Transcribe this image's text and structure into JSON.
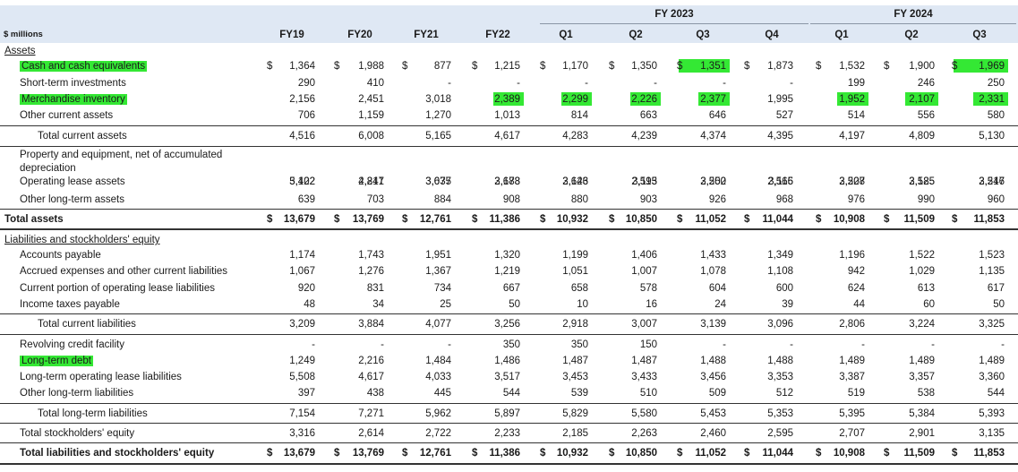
{
  "header": {
    "units": "$ millions",
    "groups": [
      "FY 2023",
      "FY 2024"
    ],
    "columns": [
      "FY19",
      "FY20",
      "FY21",
      "FY22",
      "Q1",
      "Q2",
      "Q3",
      "Q4",
      "Q1",
      "Q2",
      "Q3"
    ]
  },
  "sections": {
    "assets": "Assets",
    "liabilities": "Liabilities and stockholders' equity"
  },
  "highlight_color": "#34e834",
  "rows": [
    {
      "label": "Cash and cash equivalents",
      "indent": 1,
      "dollar": true,
      "label_hl": true,
      "values": [
        "1,364",
        "1,988",
        "877",
        "1,215",
        "1,170",
        "1,350",
        "1,351",
        "1,873",
        "1,532",
        "1,900",
        "1,969"
      ],
      "hl": [
        6,
        10
      ]
    },
    {
      "label": "Short-term investments",
      "indent": 1,
      "values": [
        "290",
        "410",
        "-",
        "-",
        "-",
        "-",
        "-",
        "-",
        "199",
        "246",
        "250"
      ]
    },
    {
      "label": "Merchandise inventory",
      "indent": 1,
      "label_hl": true,
      "values": [
        "2,156",
        "2,451",
        "3,018",
        "2,389",
        "2,299",
        "2,226",
        "2,377",
        "1,995",
        "1,952",
        "2,107",
        "2,331"
      ],
      "hl": [
        3,
        4,
        5,
        6,
        8,
        9,
        10
      ]
    },
    {
      "label": "Other current assets",
      "indent": 1,
      "values": [
        "706",
        "1,159",
        "1,270",
        "1,013",
        "814",
        "663",
        "646",
        "527",
        "514",
        "556",
        "580"
      ]
    },
    {
      "label": "Total current assets",
      "indent": 2,
      "values": [
        "4,516",
        "6,008",
        "5,165",
        "4,617",
        "4,283",
        "4,239",
        "4,374",
        "4,395",
        "4,197",
        "4,809",
        "5,130"
      ]
    },
    {
      "label": "Property and equipment, net of accumulated",
      "label2": "depreciation",
      "indent": 1,
      "values": [
        "3,122",
        "2,841",
        "3,037",
        "2,688",
        "2,646",
        "2,595",
        "2,552",
        "2,566",
        "2,528",
        "2,525",
        "2,546"
      ]
    },
    {
      "label": "Operating lease assets",
      "indent": 1,
      "values": [
        "5,402",
        "4,217",
        "3,675",
        "3,173",
        "3,123",
        "3,113",
        "3,200",
        "3,115",
        "3,207",
        "3,185",
        "3,217"
      ]
    },
    {
      "label": "Other long-term assets",
      "indent": 1,
      "values": [
        "639",
        "703",
        "884",
        "908",
        "880",
        "903",
        "926",
        "968",
        "976",
        "990",
        "960"
      ]
    },
    {
      "label": "Total assets",
      "indent": 0,
      "bold": true,
      "dollar": true,
      "values": [
        "13,679",
        "13,769",
        "12,761",
        "11,386",
        "10,932",
        "10,850",
        "11,052",
        "11,044",
        "10,908",
        "11,509",
        "11,853"
      ]
    },
    {
      "label": "Accounts payable",
      "indent": 1,
      "values": [
        "1,174",
        "1,743",
        "1,951",
        "1,320",
        "1,199",
        "1,406",
        "1,433",
        "1,349",
        "1,196",
        "1,522",
        "1,523"
      ]
    },
    {
      "label": "Accrued expenses and other current liabilities",
      "indent": 1,
      "values": [
        "1,067",
        "1,276",
        "1,367",
        "1,219",
        "1,051",
        "1,007",
        "1,078",
        "1,108",
        "942",
        "1,029",
        "1,135"
      ]
    },
    {
      "label": "Current portion of operating lease liabilities",
      "indent": 1,
      "values": [
        "920",
        "831",
        "734",
        "667",
        "658",
        "578",
        "604",
        "600",
        "624",
        "613",
        "617"
      ]
    },
    {
      "label": "Income taxes payable",
      "indent": 1,
      "values": [
        "48",
        "34",
        "25",
        "50",
        "10",
        "16",
        "24",
        "39",
        "44",
        "60",
        "50"
      ]
    },
    {
      "label": "Total current liabilities",
      "indent": 2,
      "values": [
        "3,209",
        "3,884",
        "4,077",
        "3,256",
        "2,918",
        "3,007",
        "3,139",
        "3,096",
        "2,806",
        "3,224",
        "3,325"
      ]
    },
    {
      "label": "Revolving credit facility",
      "indent": 1,
      "values": [
        "-",
        "-",
        "-",
        "350",
        "350",
        "150",
        "-",
        "-",
        "-",
        "-",
        "-"
      ]
    },
    {
      "label": "Long-term debt",
      "indent": 1,
      "label_hl": true,
      "values": [
        "1,249",
        "2,216",
        "1,484",
        "1,486",
        "1,487",
        "1,487",
        "1,488",
        "1,488",
        "1,489",
        "1,489",
        "1,489"
      ]
    },
    {
      "label": "Long-term operating lease liabilities",
      "indent": 1,
      "values": [
        "5,508",
        "4,617",
        "4,033",
        "3,517",
        "3,453",
        "3,433",
        "3,456",
        "3,353",
        "3,387",
        "3,357",
        "3,360"
      ]
    },
    {
      "label": "Other long-term liabilities",
      "indent": 1,
      "values": [
        "397",
        "438",
        "445",
        "544",
        "539",
        "510",
        "509",
        "512",
        "519",
        "538",
        "544"
      ]
    },
    {
      "label": "Total long-term liabilities",
      "indent": 2,
      "values": [
        "7,154",
        "7,271",
        "5,962",
        "5,897",
        "5,829",
        "5,580",
        "5,453",
        "5,353",
        "5,395",
        "5,384",
        "5,393"
      ]
    },
    {
      "label": "Total stockholders' equity",
      "indent": 1,
      "values": [
        "3,316",
        "2,614",
        "2,722",
        "2,233",
        "2,185",
        "2,263",
        "2,460",
        "2,595",
        "2,707",
        "2,901",
        "3,135"
      ]
    },
    {
      "label": "Total liabilities and stockholders' equity",
      "indent": 1,
      "bold": true,
      "dollar": true,
      "values": [
        "13,679",
        "13,769",
        "12,761",
        "11,386",
        "10,932",
        "10,850",
        "11,052",
        "11,044",
        "10,908",
        "11,509",
        "11,853"
      ]
    }
  ]
}
